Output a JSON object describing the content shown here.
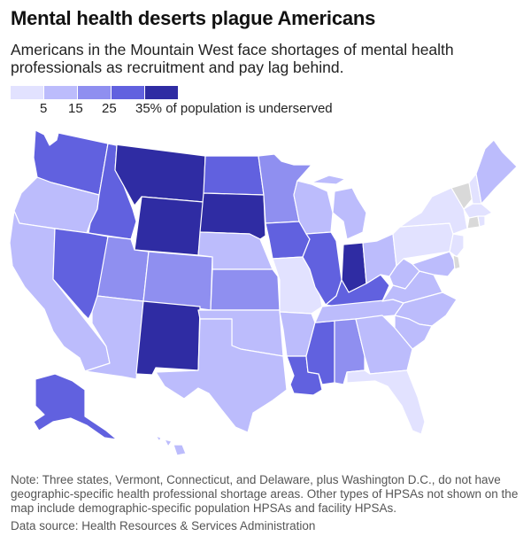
{
  "title": "Mental health deserts plague Americans",
  "subtitle": "Americans in the Mountain West face shortages of mental health professionals as recruitment and pay lag behind.",
  "legend": {
    "labels": [
      "5",
      "15",
      "25",
      "35% of population is underserved"
    ],
    "colors": [
      "#e2e2ff",
      "#bcbcfc",
      "#8f8ff0",
      "#6161df",
      "#2f2ca3"
    ]
  },
  "no_data_color": "#d9d9d9",
  "note": "Note: Three states, Vermont, Connecticut, and Delaware, plus Washington D.C., do not have geographic-specific health professional shortage areas. Other types of HPSAs not shown on the map include demographic-specific population HPSAs and facility HPSAs.",
  "source": "Data source: Health Resources & Services Administration",
  "chart_data": {
    "type": "choropleth",
    "unit": "% of population underserved",
    "bins": [
      5,
      15,
      25,
      35
    ],
    "states": [
      {
        "state": "WA",
        "level": 3
      },
      {
        "state": "OR",
        "level": 1
      },
      {
        "state": "CA",
        "level": 1
      },
      {
        "state": "ID",
        "level": 3
      },
      {
        "state": "NV",
        "level": 3
      },
      {
        "state": "MT",
        "level": 4
      },
      {
        "state": "WY",
        "level": 4
      },
      {
        "state": "UT",
        "level": 2
      },
      {
        "state": "AZ",
        "level": 1
      },
      {
        "state": "CO",
        "level": 2
      },
      {
        "state": "NM",
        "level": 4
      },
      {
        "state": "ND",
        "level": 3
      },
      {
        "state": "SD",
        "level": 4
      },
      {
        "state": "NE",
        "level": 1
      },
      {
        "state": "KS",
        "level": 2
      },
      {
        "state": "OK",
        "level": 1
      },
      {
        "state": "TX",
        "level": 1
      },
      {
        "state": "MN",
        "level": 2
      },
      {
        "state": "IA",
        "level": 3
      },
      {
        "state": "MO",
        "level": 0
      },
      {
        "state": "AR",
        "level": 1
      },
      {
        "state": "LA",
        "level": 3
      },
      {
        "state": "WI",
        "level": 1
      },
      {
        "state": "IL",
        "level": 3
      },
      {
        "state": "MS",
        "level": 3
      },
      {
        "state": "MI",
        "level": 1
      },
      {
        "state": "IN",
        "level": 4
      },
      {
        "state": "KY",
        "level": 3
      },
      {
        "state": "TN",
        "level": 1
      },
      {
        "state": "AL",
        "level": 2
      },
      {
        "state": "OH",
        "level": 1
      },
      {
        "state": "WV",
        "level": 1
      },
      {
        "state": "GA",
        "level": 1
      },
      {
        "state": "FL",
        "level": 0
      },
      {
        "state": "SC",
        "level": 1
      },
      {
        "state": "NC",
        "level": 1
      },
      {
        "state": "VA",
        "level": 1
      },
      {
        "state": "PA",
        "level": 0
      },
      {
        "state": "NY",
        "level": 0
      },
      {
        "state": "NJ",
        "level": 0
      },
      {
        "state": "MD",
        "level": 1
      },
      {
        "state": "ME",
        "level": 1
      },
      {
        "state": "NH",
        "level": 0
      },
      {
        "state": "MA",
        "level": 0
      },
      {
        "state": "RI",
        "level": 0
      },
      {
        "state": "VT",
        "level": null
      },
      {
        "state": "CT",
        "level": null
      },
      {
        "state": "DE",
        "level": null
      },
      {
        "state": "AK",
        "level": 3
      },
      {
        "state": "HI",
        "level": 1
      }
    ]
  }
}
